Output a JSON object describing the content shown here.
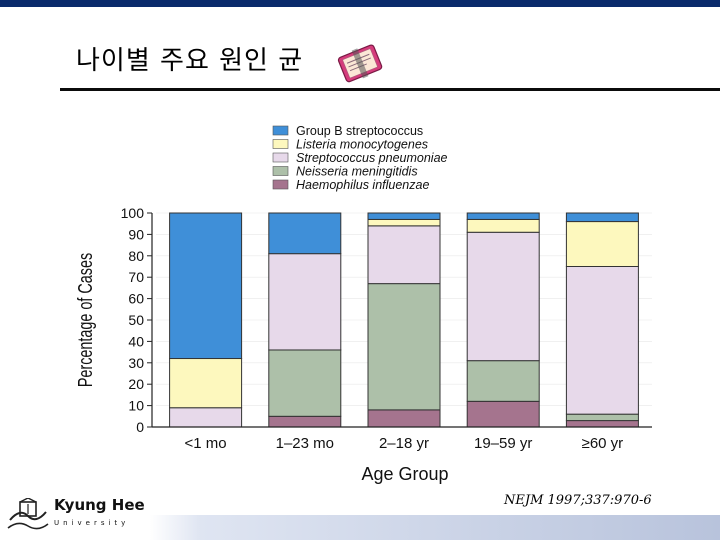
{
  "slide": {
    "title": "나이별 주요 원인 균",
    "citation": "NEJM 1997;337:970-6",
    "logo": {
      "name": "Kyung Hee",
      "subtitle": "University"
    }
  },
  "colors": {
    "top_bar": "#0a2a6b",
    "group_b": "#3f8fd8",
    "listeria": "#fdf8be",
    "strep": "#e7d9ea",
    "neisseria": "#adc0a9",
    "haemophilus": "#a5748e"
  },
  "chart_data": {
    "type": "bar",
    "stacked": true,
    "categories": [
      "<1 mo",
      "1–23 mo",
      "2–18 yr",
      "19–59 yr",
      "≥60 yr"
    ],
    "series": [
      {
        "name": "Haemophilus influenzae",
        "key": "haemophilus",
        "values": [
          0,
          5,
          8,
          12,
          3
        ]
      },
      {
        "name": "Neisseria meningitidis",
        "key": "neisseria",
        "values": [
          0,
          31,
          59,
          19,
          3
        ]
      },
      {
        "name": "Streptococcus pneumoniae",
        "key": "strep",
        "values": [
          9,
          45,
          27,
          60,
          69
        ]
      },
      {
        "name": "Listeria monocytogenes",
        "key": "listeria",
        "values": [
          23,
          0,
          3,
          6,
          21
        ]
      },
      {
        "name": "Group B streptococcus",
        "key": "group_b",
        "values": [
          68,
          19,
          3,
          3,
          4
        ]
      }
    ],
    "legend_order": [
      {
        "name": "Group B streptococcus",
        "key": "group_b",
        "italic": false
      },
      {
        "name": "Listeria monocytogenes",
        "key": "listeria",
        "italic": true
      },
      {
        "name": "Streptococcus pneumoniae",
        "key": "strep",
        "italic": true
      },
      {
        "name": "Neisseria meningitidis",
        "key": "neisseria",
        "italic": true
      },
      {
        "name": "Haemophilus influenzae",
        "key": "haemophilus",
        "italic": true
      }
    ],
    "ylabel": "Percentage of Cases",
    "xlabel": "Age Group",
    "ylim": [
      0,
      100
    ],
    "yticks": [
      0,
      10,
      20,
      30,
      40,
      50,
      60,
      70,
      80,
      90,
      100
    ],
    "legend_position": "top"
  }
}
